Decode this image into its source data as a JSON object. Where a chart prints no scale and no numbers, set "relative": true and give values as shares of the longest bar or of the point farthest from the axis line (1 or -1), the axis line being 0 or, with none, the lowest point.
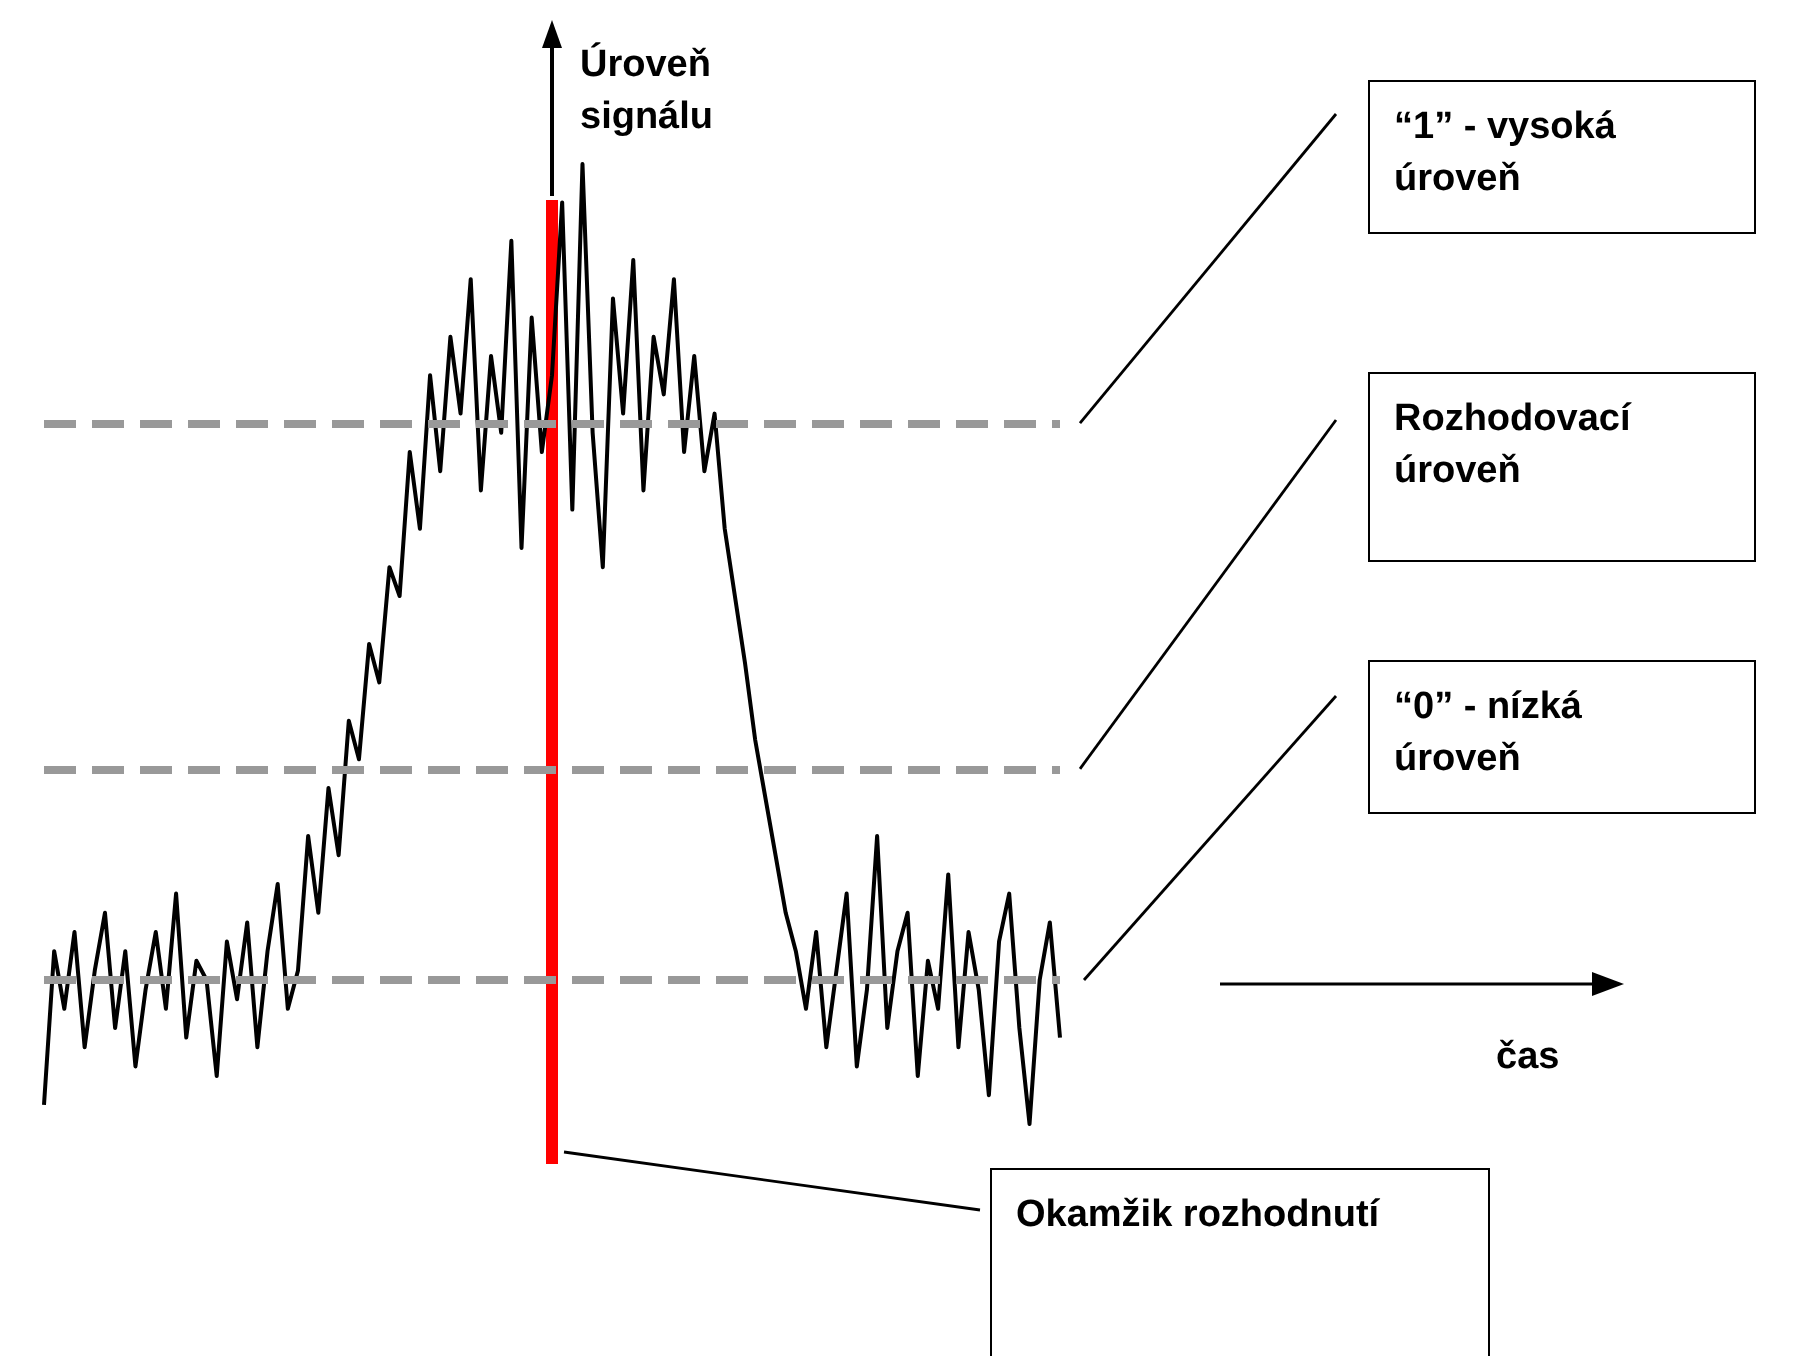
{
  "chart_data": {
    "type": "line",
    "relative": true,
    "ylabel": "Úroveň signálu",
    "tick_labels": false,
    "line_style": "solid",
    "categories": [
      null,
      null,
      null,
      null,
      null,
      null,
      null,
      null,
      null,
      null,
      null,
      null,
      null,
      null,
      null,
      null,
      null,
      null,
      null,
      null,
      null,
      null,
      null,
      null,
      null,
      null,
      null,
      null,
      null,
      null,
      null,
      null,
      null,
      null,
      null,
      null,
      null,
      null,
      null,
      null,
      null,
      null,
      null,
      null,
      null,
      null,
      null,
      null,
      null,
      null,
      null,
      null,
      null,
      null,
      null,
      null,
      null,
      null,
      null,
      null,
      null,
      null,
      null,
      null,
      null,
      null,
      null,
      null,
      null,
      null,
      null,
      null,
      null,
      null,
      null,
      null,
      null,
      null,
      null,
      null,
      null,
      null,
      null,
      null,
      null,
      null,
      null,
      null,
      null,
      null,
      null,
      null,
      null,
      null,
      null,
      null,
      null,
      null,
      null,
      null,
      null
    ],
    "series": [
      {
        "color": "#000000",
        "values": [
          0.02,
          0.18,
          0.12,
          0.2,
          0.08,
          0.16,
          0.22,
          0.1,
          0.18,
          0.06,
          0.14,
          0.2,
          0.12,
          0.24,
          0.09,
          0.17,
          0.15,
          0.05,
          0.19,
          0.13,
          0.21,
          0.08,
          0.18,
          0.25,
          0.12,
          0.16,
          0.3,
          0.22,
          0.35,
          0.28,
          0.42,
          0.38,
          0.5,
          0.46,
          0.58,
          0.55,
          0.7,
          0.62,
          0.78,
          0.68,
          0.82,
          0.74,
          0.88,
          0.66,
          0.8,
          0.72,
          0.92,
          0.6,
          0.84,
          0.7,
          0.78,
          0.96,
          0.64,
          1.0,
          0.72,
          0.58,
          0.86,
          0.74,
          0.9,
          0.66,
          0.82,
          0.76,
          0.88,
          0.7,
          0.8,
          0.68,
          0.74,
          0.62,
          0.55,
          0.48,
          0.4,
          0.34,
          0.28,
          0.22,
          0.18,
          0.12,
          0.2,
          0.08,
          0.16,
          0.24,
          0.06,
          0.14,
          0.3,
          0.1,
          0.18,
          0.22,
          0.05,
          0.17,
          0.12,
          0.26,
          0.08,
          0.2,
          0.14,
          0.03,
          0.19,
          0.24,
          0.1,
          0.0,
          0.15,
          0.21,
          0.09
        ]
      }
    ],
    "ref_lines": [
      {
        "axis": "y",
        "value": 0.73,
        "color": "#999999",
        "line_style": "dashed"
      },
      {
        "axis": "y",
        "value": 0.37,
        "color": "#999999",
        "line_style": "dashed"
      },
      {
        "axis": "y",
        "value": 0.15,
        "color": "#999999",
        "line_style": "dashed"
      }
    ],
    "annotations": [
      "“1” - vysoká úroveň",
      "Rozhodovací úroveň",
      "“0” - nízká úroveň",
      "Okamžik rozhodnutí",
      "čas"
    ]
  }
}
